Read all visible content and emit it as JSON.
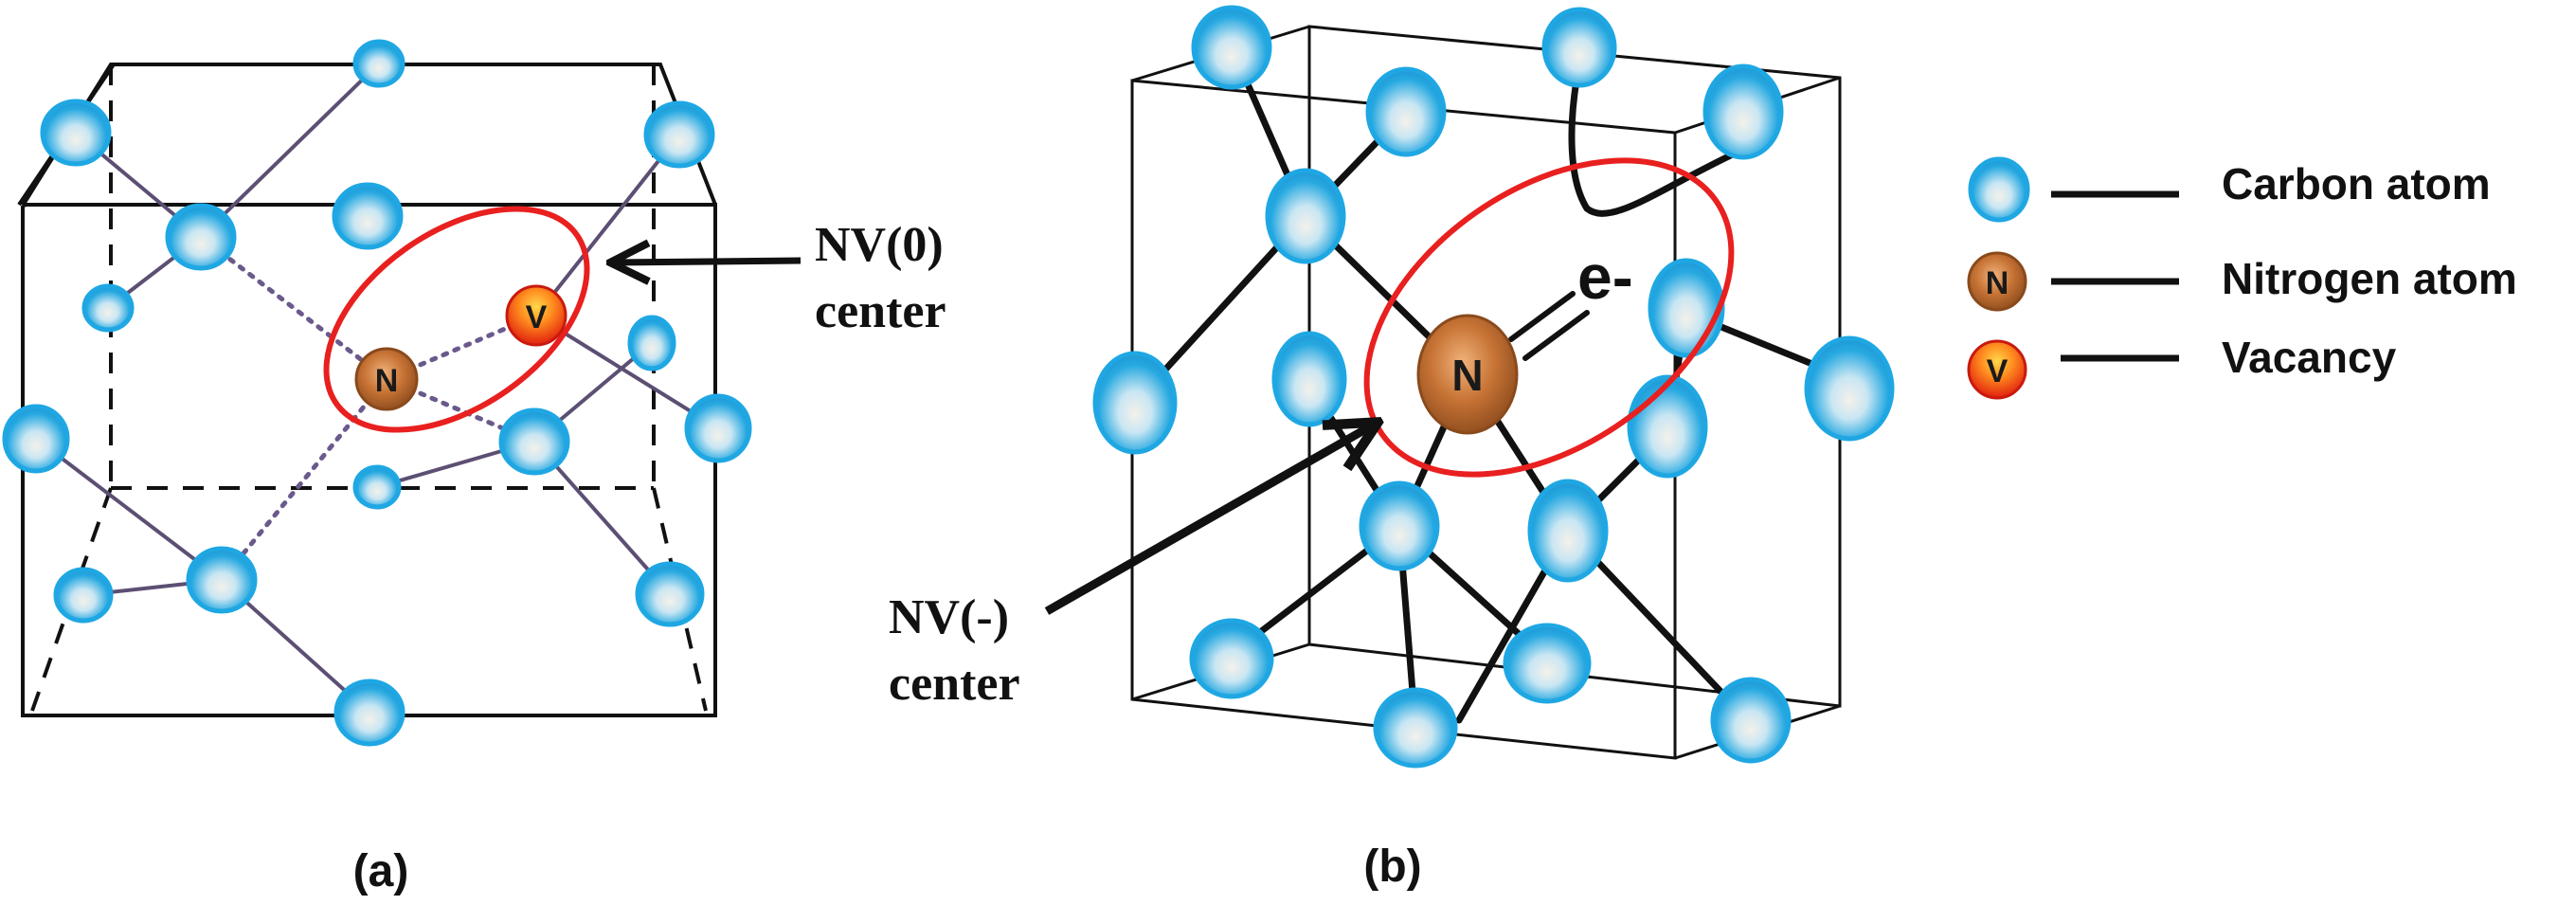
{
  "panel_a": {
    "caption": "(a)",
    "annotation_line1": "NV(0)",
    "annotation_line2": "center",
    "nitrogen_letter": "N",
    "vacancy_letter": "V"
  },
  "panel_b": {
    "caption": "(b)",
    "annotation_line1": "NV(-)",
    "annotation_line2": "center",
    "nitrogen_letter": "N",
    "electron_label": "e-"
  },
  "legend": {
    "items": [
      {
        "letter": "",
        "label": "Carbon atom"
      },
      {
        "letter": "N",
        "label": "Nitrogen atom"
      },
      {
        "letter": "V",
        "label": "Vacancy"
      }
    ]
  },
  "colors": {
    "carbon": "#29aee6",
    "nitrogen": "#b2652c",
    "vacancy": "#e62a12",
    "highlight": "#e8201f",
    "bond_a": "#5c4f73",
    "bond_b": "#111111"
  }
}
